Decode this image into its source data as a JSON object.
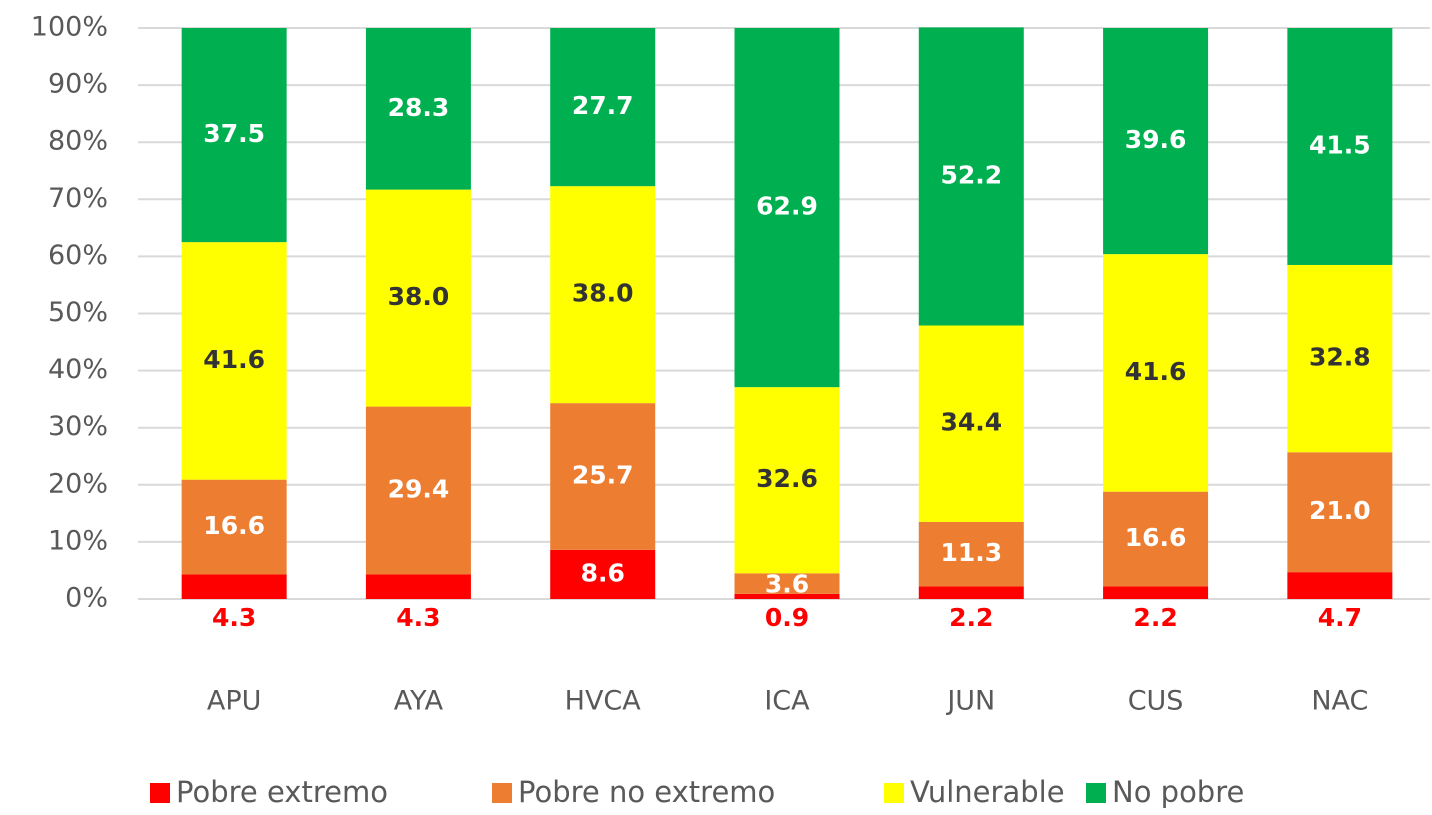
{
  "chart_data": {
    "type": "stacked_bar",
    "categories": [
      "APU",
      "AYA",
      "HVCA",
      "ICA",
      "JUN",
      "CUS",
      "NAC"
    ],
    "series": [
      {
        "name": "Pobre extremo",
        "color": "#ff0000",
        "values": [
          4.3,
          4.3,
          8.6,
          0.9,
          2.2,
          2.2,
          4.7
        ]
      },
      {
        "name": "Pobre no extremo",
        "color": "#ed7d31",
        "values": [
          16.6,
          29.4,
          25.7,
          3.6,
          11.3,
          16.6,
          21.0
        ],
        "value_labels": [
          "16.6",
          "29.4",
          "25.7",
          "3.6",
          "11.3",
          "16.6",
          "21.0"
        ]
      },
      {
        "name": "Vulnerable",
        "color": "#ffff00",
        "values": [
          41.6,
          38.0,
          38.0,
          32.6,
          34.4,
          41.6,
          32.8
        ],
        "value_labels": [
          "41.6",
          "38.0",
          "38.0",
          "32.6",
          "34.4",
          "41.6",
          "32.8"
        ]
      },
      {
        "name": "No pobre",
        "color": "#00b050",
        "values": [
          37.5,
          28.3,
          27.7,
          62.9,
          52.2,
          39.6,
          41.5
        ]
      }
    ],
    "ylim": [
      0,
      100
    ],
    "yticks": [
      {
        "value": 0,
        "label": "0%"
      },
      {
        "value": 10,
        "label": "10%"
      },
      {
        "value": 20,
        "label": "20%"
      },
      {
        "value": 30,
        "label": "30%"
      },
      {
        "value": 40,
        "label": "40%"
      },
      {
        "value": 50,
        "label": "50%"
      },
      {
        "value": 60,
        "label": "60%"
      },
      {
        "value": 70,
        "label": "70%"
      },
      {
        "value": 80,
        "label": "80%"
      },
      {
        "value": 90,
        "label": "90%"
      },
      {
        "value": 100,
        "label": "100%"
      }
    ],
    "grid": true,
    "legend": "bottom"
  }
}
